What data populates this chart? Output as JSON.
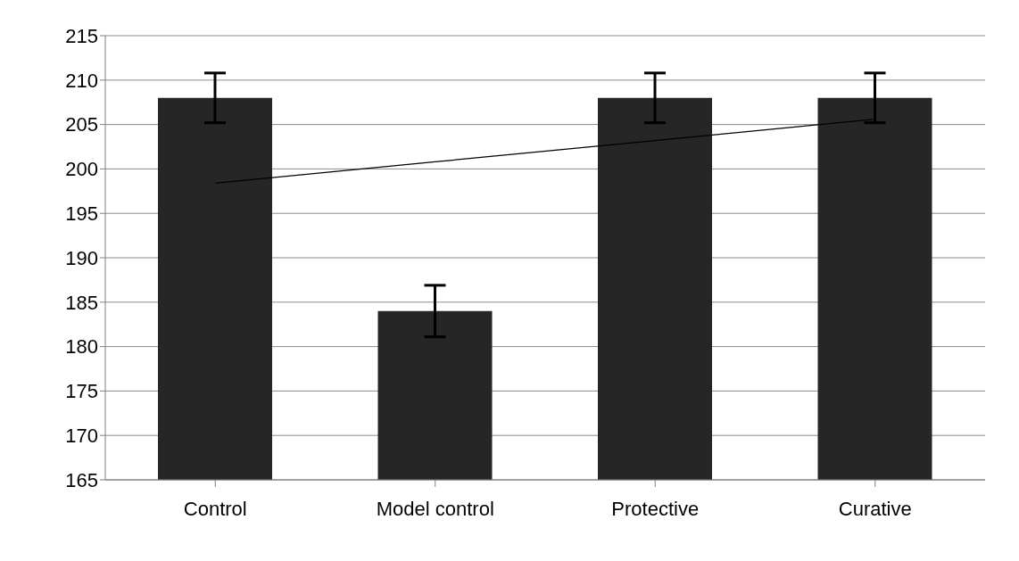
{
  "chart_data": {
    "type": "bar",
    "categories": [
      "Control",
      "Model control",
      "Protective",
      "Curative"
    ],
    "series": [
      {
        "color": "#262626",
        "values": [
          208,
          184,
          208,
          208
        ],
        "errors": [
          2.8,
          2.9,
          2.8,
          2.8
        ]
      },
      {
        "type": "line",
        "color": "#000000",
        "values": [
          198.4,
          200.8,
          203.2,
          205.6
        ],
        "marker": "none"
      }
    ],
    "ylim": [
      165,
      215
    ],
    "yticks": [
      165,
      170,
      175,
      180,
      185,
      190,
      195,
      200,
      205,
      210,
      215
    ],
    "grid": "y"
  }
}
